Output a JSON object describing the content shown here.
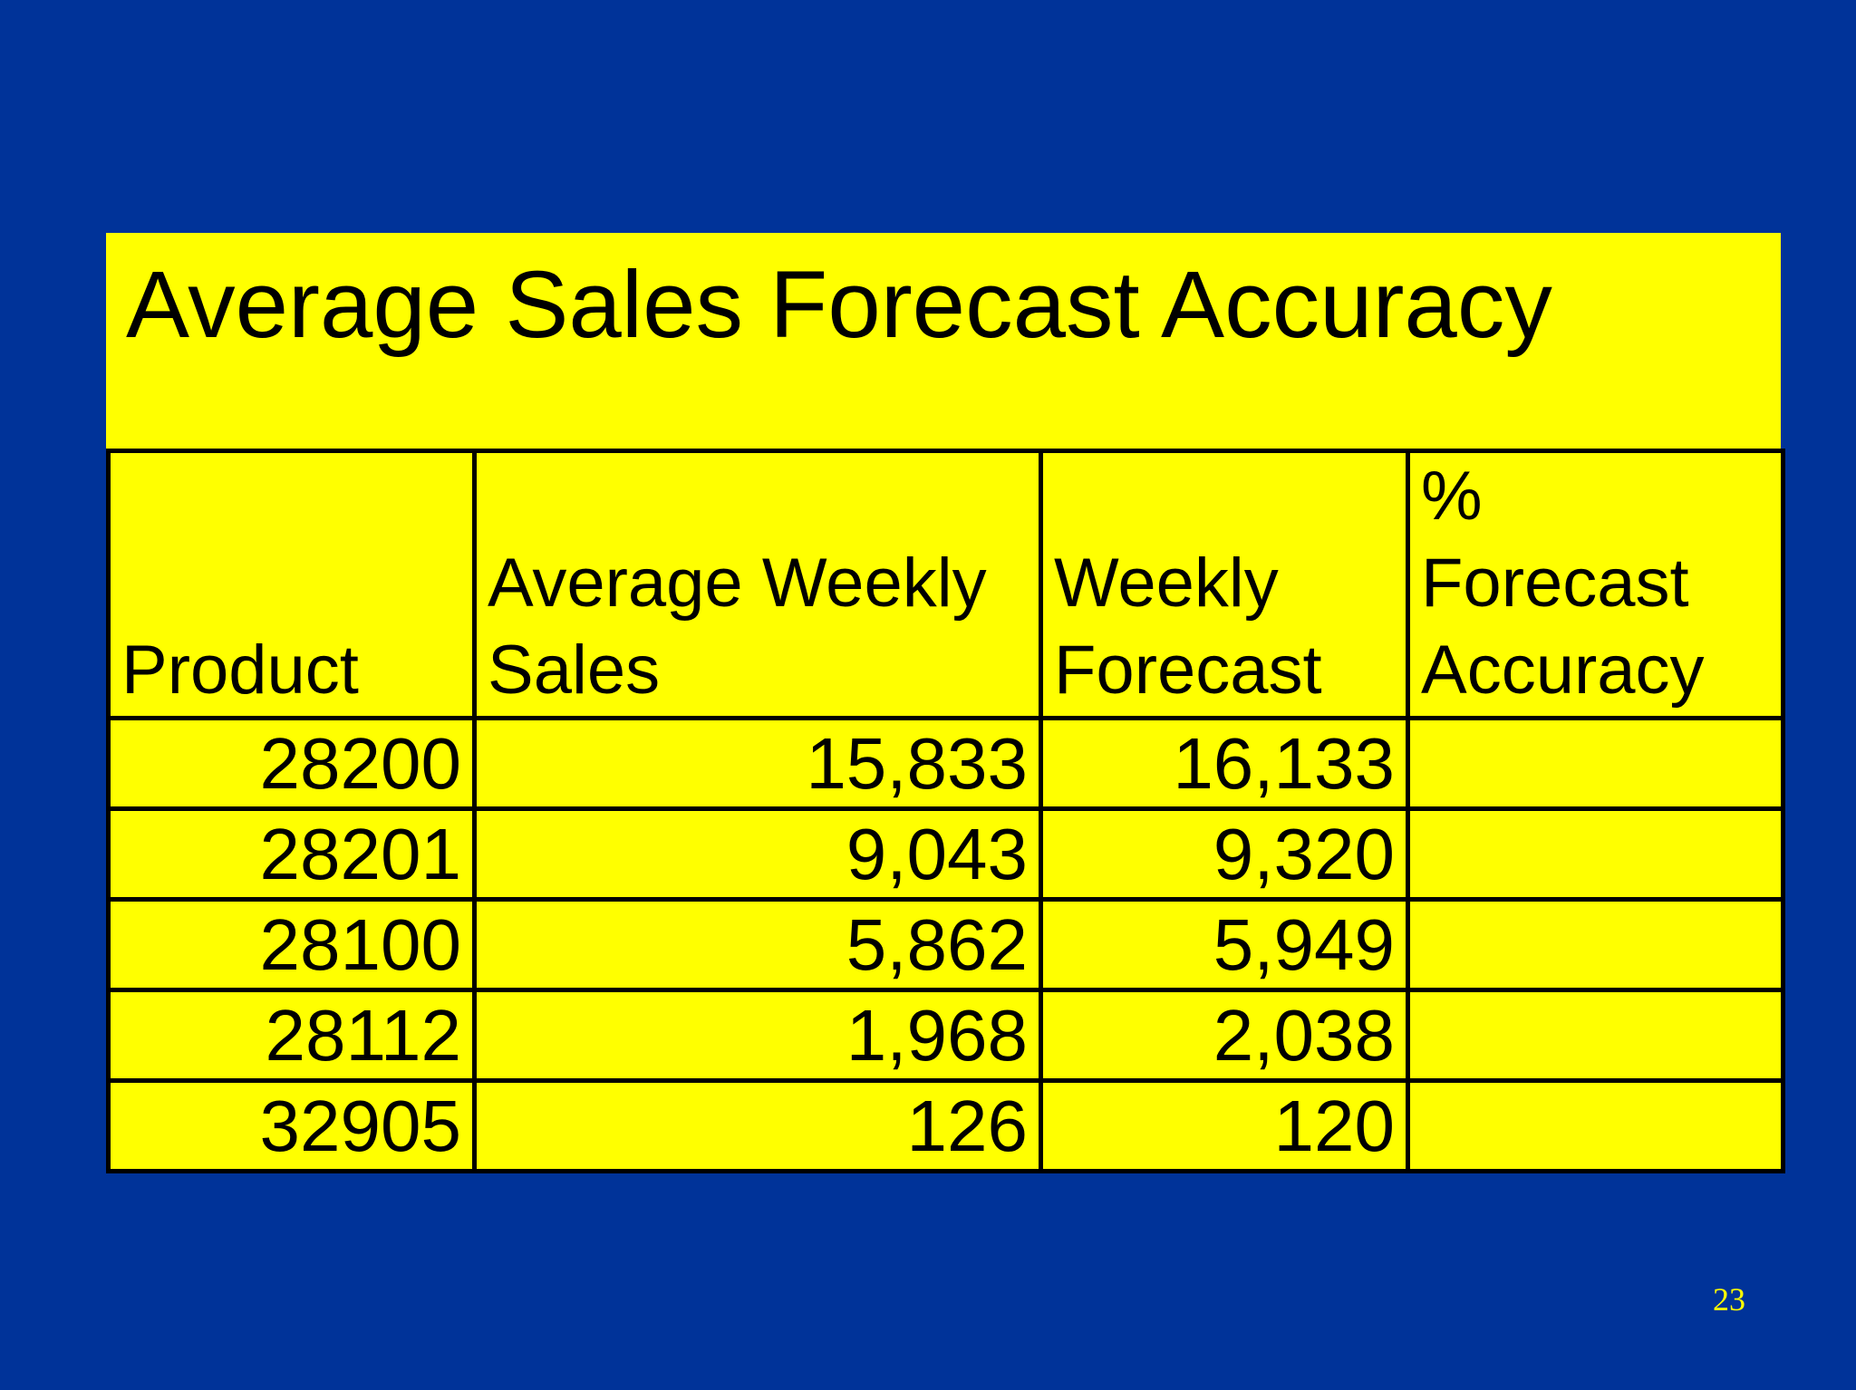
{
  "slide": {
    "title": "Average Sales Forecast Accuracy",
    "page_number": "23"
  },
  "colors": {
    "background": "#003399",
    "panel": "#ffff00",
    "text": "#000000",
    "page_number": "#ffff00"
  },
  "table": {
    "headers": [
      {
        "lines": [
          "Product"
        ]
      },
      {
        "lines": [
          "Average Weekly",
          "Sales"
        ]
      },
      {
        "lines": [
          "Weekly",
          "Forecast"
        ]
      },
      {
        "lines": [
          "%",
          "Forecast",
          "Accuracy"
        ]
      }
    ],
    "rows": [
      [
        "28200",
        "15,833",
        "16,133",
        ""
      ],
      [
        "28201",
        "9,043",
        "9,320",
        ""
      ],
      [
        "28100",
        "5,862",
        "5,949",
        ""
      ],
      [
        "28112",
        "1,968",
        "2,038",
        ""
      ],
      [
        "32905",
        "126",
        "120",
        ""
      ]
    ]
  }
}
